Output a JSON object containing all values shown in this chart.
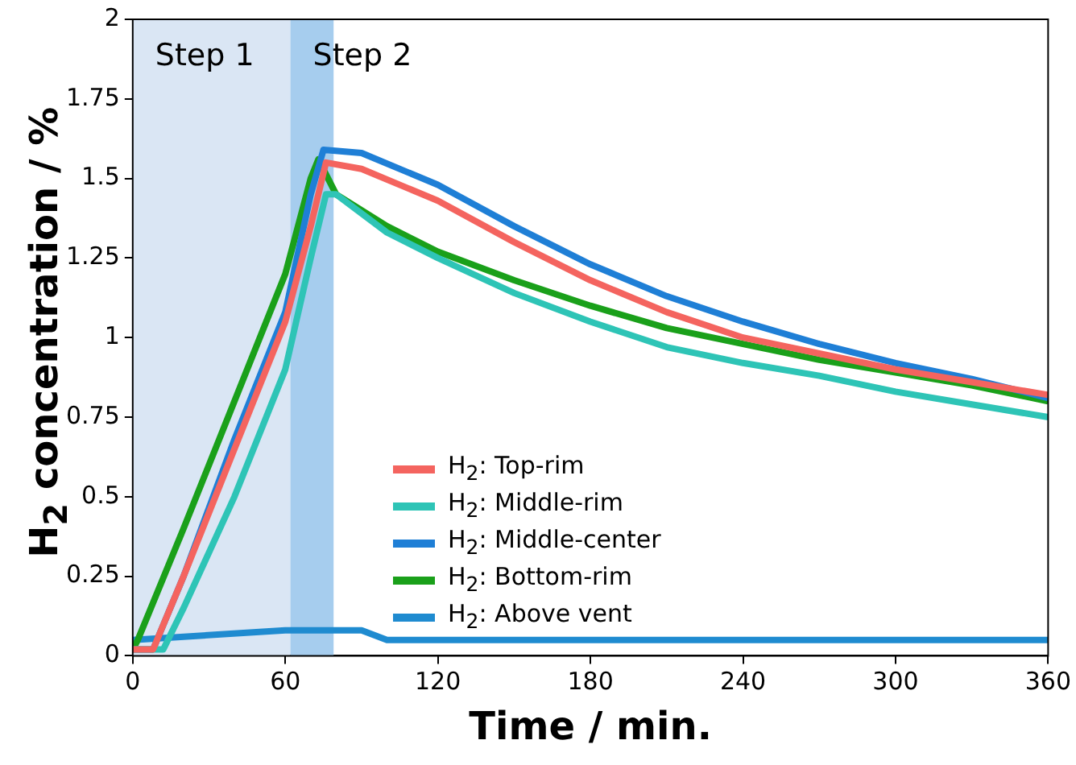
{
  "chart_data": {
    "type": "line",
    "xlabel": "Time / min.",
    "ylabel": "H$_{2}$ concentration / %",
    "xlim": [
      0,
      360
    ],
    "xticks": [
      0,
      60,
      120,
      180,
      240,
      300,
      360
    ],
    "ylim": [
      0,
      2
    ],
    "yticks": [
      0,
      0.25,
      0.5,
      0.75,
      1,
      1.25,
      1.5,
      1.75,
      2
    ],
    "grid": false,
    "legend": "bottom",
    "marker": "none",
    "line_style": "solid",
    "bands": [
      {
        "axis": "x",
        "from": 0,
        "to": 62,
        "label": "Step 1",
        "color": "#dae6f4"
      },
      {
        "axis": "x",
        "from": 62,
        "to": 79,
        "label": "Step 2",
        "color": "#a6cdee"
      }
    ],
    "series": [
      {
        "name": "H$_{2}$: Top-rim",
        "color": "#f4645f",
        "x": [
          0,
          8,
          20,
          40,
          60,
          70,
          76,
          90,
          120,
          150,
          180,
          210,
          240,
          270,
          300,
          330,
          360
        ],
        "values": [
          0.02,
          0.02,
          0.25,
          0.65,
          1.05,
          1.35,
          1.55,
          1.53,
          1.43,
          1.3,
          1.18,
          1.08,
          1.0,
          0.95,
          0.9,
          0.86,
          0.82
        ]
      },
      {
        "name": "H$_{2}$: Middle-rim",
        "color": "#2ec4b6",
        "x": [
          0,
          12,
          20,
          40,
          60,
          70,
          76,
          80,
          100,
          120,
          150,
          180,
          210,
          240,
          270,
          300,
          330,
          360
        ],
        "values": [
          0.02,
          0.02,
          0.15,
          0.5,
          0.9,
          1.25,
          1.45,
          1.45,
          1.33,
          1.25,
          1.14,
          1.05,
          0.97,
          0.92,
          0.88,
          0.83,
          0.79,
          0.75
        ]
      },
      {
        "name": "H$_{2}$: Middle-center",
        "color": "#1f7fd6",
        "x": [
          0,
          8,
          20,
          40,
          60,
          70,
          75,
          90,
          120,
          150,
          180,
          210,
          240,
          270,
          300,
          330,
          360
        ],
        "values": [
          0.02,
          0.02,
          0.25,
          0.68,
          1.08,
          1.45,
          1.59,
          1.58,
          1.48,
          1.35,
          1.23,
          1.13,
          1.05,
          0.98,
          0.92,
          0.87,
          0.81
        ]
      },
      {
        "name": "H$_{2}$: Bottom-rim",
        "color": "#1aa01a",
        "x": [
          0,
          2,
          20,
          40,
          60,
          70,
          73,
          80,
          100,
          120,
          150,
          180,
          210,
          240,
          270,
          300,
          330,
          360
        ],
        "values": [
          0.02,
          0.05,
          0.4,
          0.8,
          1.2,
          1.5,
          1.56,
          1.45,
          1.35,
          1.27,
          1.18,
          1.1,
          1.03,
          0.98,
          0.93,
          0.89,
          0.85,
          0.8
        ]
      },
      {
        "name": "H$_{2}$: Above vent",
        "color": "#1f8bd0",
        "x": [
          0,
          60,
          90,
          100,
          360
        ],
        "values": [
          0.05,
          0.08,
          0.08,
          0.05,
          0.05
        ]
      }
    ]
  }
}
